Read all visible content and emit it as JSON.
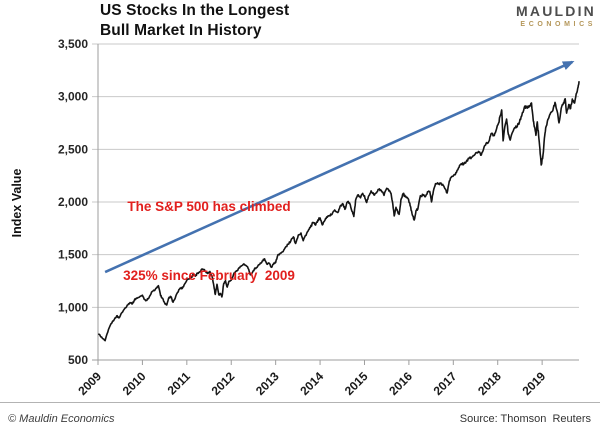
{
  "title": {
    "line1": "US Stocks In the Longest",
    "line2": "Bull Market In History"
  },
  "logo": {
    "name": "MAULDIN",
    "sub": "ECONOMICS",
    "name_color": "#4d4d4d",
    "sub_color": "#b5975a"
  },
  "annotation": {
    "line1": "The S&P 500 has climbed",
    "line2": "325% since February  2009",
    "color": "#e1201e"
  },
  "footer": {
    "copyright": "© Mauldin Economics",
    "source": "Source: Thomson  Reuters"
  },
  "chart_data": {
    "type": "line",
    "title": "US Stocks In the Longest Bull Market In History",
    "xlabel": "",
    "ylabel": "Index Value",
    "grid": true,
    "legend": "none",
    "xlim": [
      2009,
      2019.83
    ],
    "ylim": [
      500,
      3500
    ],
    "x_ticks": [
      2009,
      2010,
      2011,
      2012,
      2013,
      2014,
      2015,
      2016,
      2017,
      2018,
      2019
    ],
    "y_ticks": [
      {
        "v": 500,
        "label": "500"
      },
      {
        "v": 1000,
        "label": "1,000"
      },
      {
        "v": 1500,
        "label": "1,500"
      },
      {
        "v": 2000,
        "label": "2,000"
      },
      {
        "v": 2500,
        "label": "2,500"
      },
      {
        "v": 3000,
        "label": "3,000"
      },
      {
        "v": 3500,
        "label": "3,500"
      }
    ],
    "axis_color": "#9e9e9e",
    "grid_color": "#c9c9c9",
    "trend_arrow": {
      "from": [
        2009.16,
        1335
      ],
      "to": [
        2019.68,
        3330
      ],
      "color": "#4472b0"
    },
    "series": [
      {
        "name": "S&P 500 Index Value",
        "color": "#141414",
        "points": [
          [
            2009.02,
            745
          ],
          [
            2009.1,
            705
          ],
          [
            2009.16,
            683
          ],
          [
            2009.22,
            765
          ],
          [
            2009.29,
            843
          ],
          [
            2009.37,
            887
          ],
          [
            2009.42,
            919
          ],
          [
            2009.47,
            900
          ],
          [
            2009.54,
            950
          ],
          [
            2009.6,
            987
          ],
          [
            2009.66,
            1021
          ],
          [
            2009.72,
            1045
          ],
          [
            2009.78,
            1036
          ],
          [
            2009.82,
            1070
          ],
          [
            2009.87,
            1088
          ],
          [
            2009.93,
            1096
          ],
          [
            2010.0,
            1115
          ],
          [
            2010.05,
            1074
          ],
          [
            2010.1,
            1066
          ],
          [
            2010.16,
            1104
          ],
          [
            2010.22,
            1150
          ],
          [
            2010.29,
            1169
          ],
          [
            2010.33,
            1187
          ],
          [
            2010.36,
            1205
          ],
          [
            2010.41,
            1110
          ],
          [
            2010.45,
            1089
          ],
          [
            2010.51,
            1031
          ],
          [
            2010.55,
            1022
          ],
          [
            2010.6,
            1095
          ],
          [
            2010.64,
            1102
          ],
          [
            2010.69,
            1049
          ],
          [
            2010.74,
            1090
          ],
          [
            2010.79,
            1141
          ],
          [
            2010.85,
            1183
          ],
          [
            2010.9,
            1181
          ],
          [
            2010.95,
            1221
          ],
          [
            2011.0,
            1258
          ],
          [
            2011.06,
            1276
          ],
          [
            2011.11,
            1286
          ],
          [
            2011.15,
            1320
          ],
          [
            2011.19,
            1296
          ],
          [
            2011.24,
            1326
          ],
          [
            2011.3,
            1340
          ],
          [
            2011.35,
            1364
          ],
          [
            2011.41,
            1345
          ],
          [
            2011.47,
            1321
          ],
          [
            2011.52,
            1340
          ],
          [
            2011.57,
            1292
          ],
          [
            2011.61,
            1200
          ],
          [
            2011.64,
            1123
          ],
          [
            2011.68,
            1219
          ],
          [
            2011.72,
            1120
          ],
          [
            2011.76,
            1131
          ],
          [
            2011.79,
            1099
          ],
          [
            2011.83,
            1225
          ],
          [
            2011.87,
            1253
          ],
          [
            2011.91,
            1192
          ],
          [
            2011.95,
            1247
          ],
          [
            2012.0,
            1258
          ],
          [
            2012.05,
            1312
          ],
          [
            2012.11,
            1342
          ],
          [
            2012.16,
            1366
          ],
          [
            2012.22,
            1390
          ],
          [
            2012.27,
            1408
          ],
          [
            2012.33,
            1398
          ],
          [
            2012.38,
            1370
          ],
          [
            2012.43,
            1310
          ],
          [
            2012.47,
            1325
          ],
          [
            2012.52,
            1362
          ],
          [
            2012.58,
            1379
          ],
          [
            2012.64,
            1407
          ],
          [
            2012.7,
            1441
          ],
          [
            2012.75,
            1461
          ],
          [
            2012.8,
            1412
          ],
          [
            2012.86,
            1416
          ],
          [
            2012.91,
            1380
          ],
          [
            2012.96,
            1420
          ],
          [
            2013.0,
            1426
          ],
          [
            2013.05,
            1498
          ],
          [
            2013.11,
            1515
          ],
          [
            2013.17,
            1530
          ],
          [
            2013.22,
            1569
          ],
          [
            2013.28,
            1598
          ],
          [
            2013.34,
            1631
          ],
          [
            2013.4,
            1669
          ],
          [
            2013.45,
            1606
          ],
          [
            2013.51,
            1686
          ],
          [
            2013.57,
            1706
          ],
          [
            2013.62,
            1633
          ],
          [
            2013.67,
            1682
          ],
          [
            2013.73,
            1725
          ],
          [
            2013.78,
            1757
          ],
          [
            2013.84,
            1806
          ],
          [
            2013.9,
            1782
          ],
          [
            2013.95,
            1828
          ],
          [
            2014.0,
            1848
          ],
          [
            2014.05,
            1783
          ],
          [
            2014.1,
            1820
          ],
          [
            2014.15,
            1859
          ],
          [
            2014.21,
            1872
          ],
          [
            2014.27,
            1884
          ],
          [
            2014.33,
            1924
          ],
          [
            2014.4,
            1900
          ],
          [
            2014.45,
            1960
          ],
          [
            2014.51,
            1985
          ],
          [
            2014.56,
            1931
          ],
          [
            2014.62,
            2003
          ],
          [
            2014.68,
            1972
          ],
          [
            2014.73,
            1906
          ],
          [
            2014.76,
            1862
          ],
          [
            2014.8,
            2018
          ],
          [
            2014.86,
            2068
          ],
          [
            2014.91,
            2040
          ],
          [
            2014.96,
            2082
          ],
          [
            2015.0,
            2059
          ],
          [
            2015.05,
            1995
          ],
          [
            2015.1,
            2060
          ],
          [
            2015.15,
            2105
          ],
          [
            2015.21,
            2068
          ],
          [
            2015.27,
            2086
          ],
          [
            2015.32,
            2120
          ],
          [
            2015.38,
            2107
          ],
          [
            2015.44,
            2063
          ],
          [
            2015.5,
            2130
          ],
          [
            2015.55,
            2104
          ],
          [
            2015.6,
            2079
          ],
          [
            2015.64,
            1972
          ],
          [
            2015.67,
            1868
          ],
          [
            2015.71,
            1950
          ],
          [
            2015.74,
            1920
          ],
          [
            2015.78,
            1882
          ],
          [
            2015.82,
            2020
          ],
          [
            2015.87,
            2079
          ],
          [
            2015.92,
            2050
          ],
          [
            2015.96,
            2044
          ],
          [
            2016.02,
            1990
          ],
          [
            2016.05,
            1922
          ],
          [
            2016.09,
            1865
          ],
          [
            2016.12,
            1829
          ],
          [
            2016.16,
            1917
          ],
          [
            2016.2,
            1932
          ],
          [
            2016.26,
            2060
          ],
          [
            2016.32,
            2065
          ],
          [
            2016.37,
            2050
          ],
          [
            2016.42,
            2097
          ],
          [
            2016.47,
            2099
          ],
          [
            2016.51,
            2001
          ],
          [
            2016.55,
            2100
          ],
          [
            2016.6,
            2174
          ],
          [
            2016.66,
            2171
          ],
          [
            2016.71,
            2180
          ],
          [
            2016.76,
            2168
          ],
          [
            2016.81,
            2126
          ],
          [
            2016.86,
            2085
          ],
          [
            2016.91,
            2199
          ],
          [
            2016.96,
            2239
          ],
          [
            2017.02,
            2260
          ],
          [
            2017.07,
            2279
          ],
          [
            2017.13,
            2330
          ],
          [
            2017.18,
            2364
          ],
          [
            2017.24,
            2363
          ],
          [
            2017.29,
            2384
          ],
          [
            2017.35,
            2412
          ],
          [
            2017.41,
            2423
          ],
          [
            2017.46,
            2440
          ],
          [
            2017.52,
            2470
          ],
          [
            2017.58,
            2472
          ],
          [
            2017.63,
            2445
          ],
          [
            2017.69,
            2519
          ],
          [
            2017.74,
            2560
          ],
          [
            2017.8,
            2575
          ],
          [
            2017.85,
            2648
          ],
          [
            2017.91,
            2630
          ],
          [
            2017.96,
            2674
          ],
          [
            2018.02,
            2750
          ],
          [
            2018.06,
            2824
          ],
          [
            2018.09,
            2873
          ],
          [
            2018.12,
            2581
          ],
          [
            2018.16,
            2714
          ],
          [
            2018.2,
            2787
          ],
          [
            2018.24,
            2641
          ],
          [
            2018.28,
            2588
          ],
          [
            2018.32,
            2648
          ],
          [
            2018.38,
            2705
          ],
          [
            2018.44,
            2718
          ],
          [
            2018.49,
            2760
          ],
          [
            2018.54,
            2816
          ],
          [
            2018.6,
            2902
          ],
          [
            2018.65,
            2897
          ],
          [
            2018.71,
            2914
          ],
          [
            2018.76,
            2940
          ],
          [
            2018.8,
            2768
          ],
          [
            2018.83,
            2712
          ],
          [
            2018.86,
            2633
          ],
          [
            2018.89,
            2760
          ],
          [
            2018.92,
            2633
          ],
          [
            2018.95,
            2506
          ],
          [
            2018.98,
            2351
          ],
          [
            2019.02,
            2447
          ],
          [
            2019.05,
            2607
          ],
          [
            2019.08,
            2704
          ],
          [
            2019.13,
            2784
          ],
          [
            2019.18,
            2834
          ],
          [
            2019.24,
            2867
          ],
          [
            2019.29,
            2946
          ],
          [
            2019.34,
            2860
          ],
          [
            2019.38,
            2752
          ],
          [
            2019.43,
            2890
          ],
          [
            2019.48,
            2942
          ],
          [
            2019.52,
            2980
          ],
          [
            2019.55,
            2844
          ],
          [
            2019.6,
            2926
          ],
          [
            2019.64,
            2888
          ],
          [
            2019.68,
            2977
          ],
          [
            2019.73,
            2940
          ],
          [
            2019.78,
            3038
          ],
          [
            2019.81,
            3090
          ],
          [
            2019.83,
            3141
          ]
        ]
      }
    ]
  }
}
